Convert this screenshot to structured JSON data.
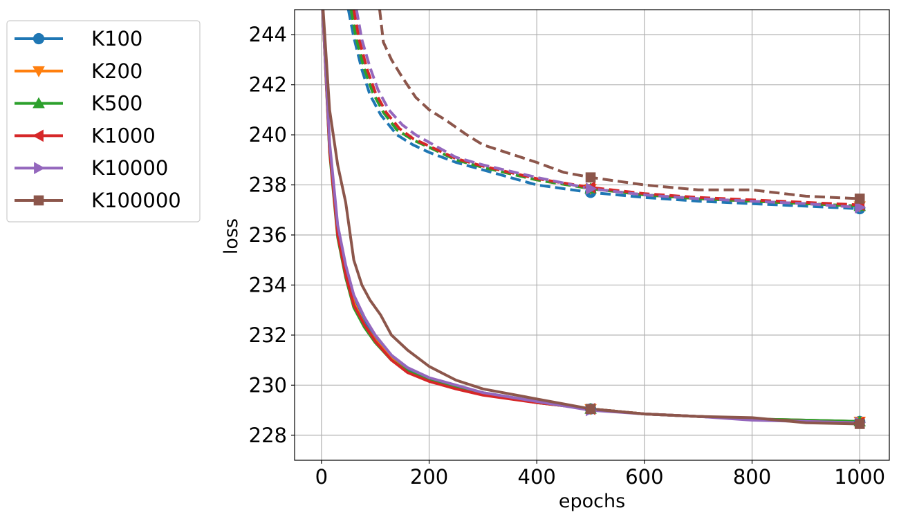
{
  "chart_data": {
    "type": "line",
    "xlabel": "epochs",
    "ylabel": "loss",
    "xlim": [
      -50,
      1055
    ],
    "ylim": [
      227,
      245
    ],
    "xticks": [
      0,
      200,
      400,
      600,
      800,
      1000
    ],
    "yticks": [
      228,
      230,
      232,
      234,
      236,
      238,
      240,
      242,
      244
    ],
    "grid": true,
    "legend_position": "outside-left-top",
    "line_styles": {
      "solid": "train",
      "dashed": "validation"
    },
    "marker_epochs": [
      500,
      1000
    ],
    "series": [
      {
        "name": "K100",
        "color": "#1f77b4",
        "marker": "circle",
        "solid": {
          "x": [
            0,
            15,
            30,
            45,
            60,
            80,
            100,
            130,
            160,
            200,
            250,
            300,
            400,
            500,
            600,
            700,
            800,
            900,
            1000
          ],
          "y": [
            246,
            239.5,
            236.2,
            234.6,
            233.4,
            232.5,
            231.85,
            231.1,
            230.6,
            230.25,
            229.95,
            229.7,
            229.35,
            229.05,
            228.85,
            228.75,
            228.65,
            228.6,
            228.55
          ]
        },
        "dashed": {
          "x": [
            50,
            60,
            75,
            90,
            110,
            140,
            170,
            200,
            250,
            300,
            400,
            500,
            600,
            700,
            800,
            900,
            1000
          ],
          "y": [
            245,
            243.9,
            242.6,
            241.6,
            240.8,
            240.0,
            239.6,
            239.3,
            238.9,
            238.6,
            238.0,
            237.7,
            237.5,
            237.35,
            237.25,
            237.15,
            237.05
          ]
        }
      },
      {
        "name": "K200",
        "color": "#ff7f0e",
        "marker": "triangle-down",
        "solid": {
          "x": [
            0,
            15,
            30,
            45,
            60,
            80,
            100,
            130,
            160,
            200,
            250,
            300,
            400,
            500,
            600,
            700,
            800,
            900,
            1000
          ],
          "y": [
            246,
            239.4,
            236.1,
            234.5,
            233.3,
            232.4,
            231.8,
            231.05,
            230.55,
            230.2,
            229.9,
            229.65,
            229.3,
            229.05,
            228.85,
            228.75,
            228.65,
            228.6,
            228.55
          ]
        },
        "dashed": {
          "x": [
            55,
            65,
            80,
            95,
            115,
            140,
            170,
            200,
            250,
            300,
            400,
            500,
            600,
            700,
            800,
            900,
            1000
          ],
          "y": [
            245,
            243.8,
            242.6,
            241.7,
            240.9,
            240.2,
            239.8,
            239.5,
            239.0,
            238.7,
            238.2,
            237.85,
            237.6,
            237.45,
            237.35,
            237.25,
            237.15
          ]
        }
      },
      {
        "name": "K500",
        "color": "#2ca02c",
        "marker": "triangle-up",
        "solid": {
          "x": [
            0,
            15,
            30,
            45,
            60,
            80,
            100,
            130,
            160,
            200,
            250,
            300,
            400,
            500,
            600,
            700,
            800,
            900,
            1000
          ],
          "y": [
            246,
            239.3,
            235.9,
            234.3,
            233.1,
            232.3,
            231.7,
            231.0,
            230.55,
            230.2,
            229.9,
            229.65,
            229.3,
            229.05,
            228.85,
            228.75,
            228.65,
            228.6,
            228.55
          ]
        },
        "dashed": {
          "x": [
            55,
            65,
            80,
            95,
            115,
            140,
            170,
            200,
            250,
            300,
            400,
            500,
            600,
            700,
            800,
            900,
            1000
          ],
          "y": [
            245,
            243.8,
            242.6,
            241.7,
            240.9,
            240.2,
            239.8,
            239.5,
            239.0,
            238.7,
            238.2,
            237.85,
            237.6,
            237.45,
            237.35,
            237.25,
            237.15
          ]
        }
      },
      {
        "name": "K1000",
        "color": "#d62728",
        "marker": "triangle-left",
        "solid": {
          "x": [
            0,
            15,
            30,
            45,
            60,
            80,
            100,
            130,
            160,
            200,
            250,
            300,
            400,
            500,
            600,
            700,
            800,
            900,
            1000
          ],
          "y": [
            246,
            239.4,
            236.0,
            234.4,
            233.2,
            232.4,
            231.75,
            231.0,
            230.5,
            230.15,
            229.85,
            229.6,
            229.3,
            229.05,
            228.85,
            228.75,
            228.65,
            228.55,
            228.5
          ]
        },
        "dashed": {
          "x": [
            60,
            70,
            85,
            100,
            120,
            145,
            170,
            200,
            250,
            300,
            400,
            500,
            600,
            700,
            800,
            900,
            1000
          ],
          "y": [
            245,
            243.8,
            242.6,
            241.7,
            240.9,
            240.25,
            239.85,
            239.55,
            239.05,
            238.75,
            238.25,
            237.9,
            237.65,
            237.5,
            237.4,
            237.3,
            237.2
          ]
        }
      },
      {
        "name": "K10000",
        "color": "#9467bd",
        "marker": "triangle-right",
        "solid": {
          "x": [
            0,
            15,
            30,
            45,
            60,
            80,
            100,
            130,
            160,
            200,
            250,
            300,
            400,
            500,
            600,
            700,
            800,
            900,
            1000
          ],
          "y": [
            246,
            239.7,
            236.4,
            234.8,
            233.6,
            232.7,
            232.0,
            231.2,
            230.7,
            230.3,
            230.0,
            229.7,
            229.35,
            229.0,
            228.85,
            228.75,
            228.6,
            228.55,
            228.5
          ]
        },
        "dashed": {
          "x": [
            65,
            75,
            90,
            105,
            125,
            150,
            175,
            200,
            250,
            300,
            400,
            500,
            600,
            700,
            800,
            900,
            1000
          ],
          "y": [
            245,
            243.8,
            242.7,
            241.8,
            241.0,
            240.4,
            240.0,
            239.7,
            239.1,
            238.8,
            238.3,
            237.85,
            237.6,
            237.45,
            237.35,
            237.25,
            237.1
          ]
        }
      },
      {
        "name": "K100000",
        "color": "#8c564b",
        "marker": "square",
        "solid": {
          "x": [
            0,
            15,
            30,
            45,
            60,
            75,
            90,
            110,
            130,
            160,
            200,
            250,
            300,
            400,
            500,
            600,
            700,
            800,
            900,
            1000
          ],
          "y": [
            246,
            241.0,
            238.8,
            237.3,
            235.0,
            234.0,
            233.4,
            232.8,
            232.0,
            231.4,
            230.75,
            230.2,
            229.85,
            229.45,
            229.05,
            228.85,
            228.75,
            228.7,
            228.5,
            228.45
          ]
        },
        "dashed": {
          "x": [
            108,
            115,
            130,
            150,
            175,
            200,
            230,
            270,
            300,
            350,
            400,
            450,
            500,
            600,
            700,
            800,
            900,
            1000
          ],
          "y": [
            245,
            243.7,
            243.0,
            242.3,
            241.5,
            241.0,
            240.6,
            240.0,
            239.6,
            239.25,
            238.9,
            238.5,
            238.3,
            238.0,
            237.8,
            237.8,
            237.55,
            237.45
          ]
        }
      }
    ]
  }
}
